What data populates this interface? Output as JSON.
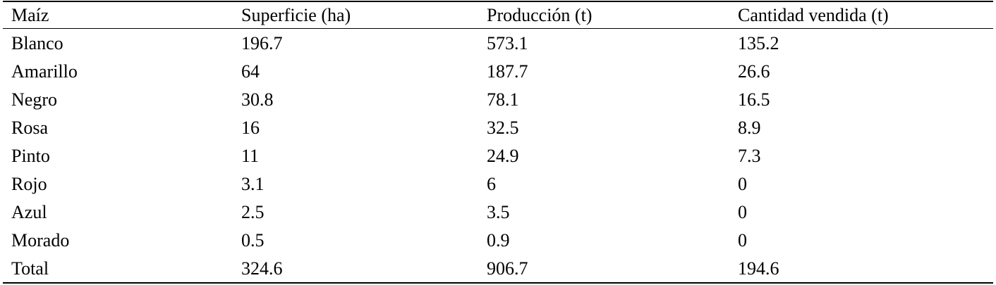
{
  "table": {
    "header": [
      "Maíz",
      "Superficie (ha)",
      "Producción (t)",
      "Cantidad vendida (t)"
    ],
    "rows": [
      [
        "Blanco",
        "196.7",
        "573.1",
        "135.2"
      ],
      [
        "Amarillo",
        "64",
        "187.7",
        "26.6"
      ],
      [
        "Negro",
        "30.8",
        "78.1",
        "16.5"
      ],
      [
        "Rosa",
        "16",
        "32.5",
        "8.9"
      ],
      [
        "Pinto",
        "11",
        "24.9",
        "7.3"
      ],
      [
        "Rojo",
        "3.1",
        "6",
        "0"
      ],
      [
        "Azul",
        "2.5",
        "3.5",
        "0"
      ],
      [
        "Morado",
        "0.5",
        "0.9",
        "0"
      ],
      [
        "Total",
        "324.6",
        "906.7",
        "194.6"
      ]
    ]
  }
}
